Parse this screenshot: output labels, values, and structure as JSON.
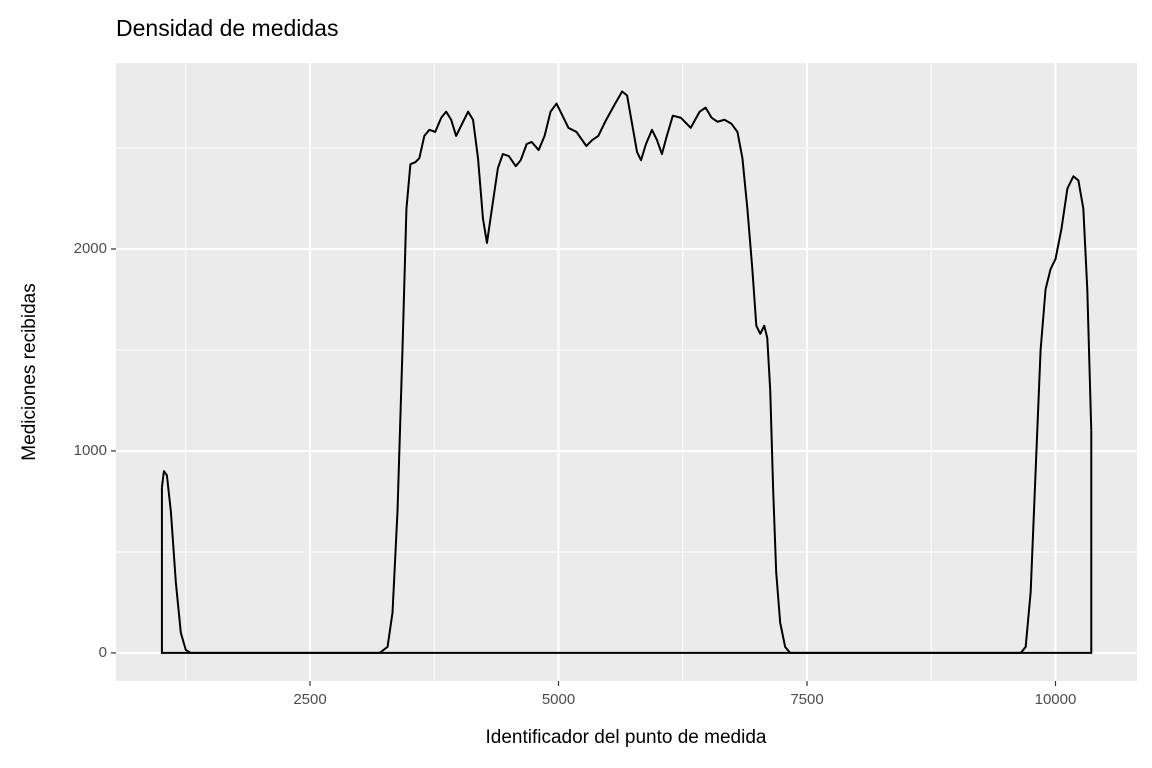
{
  "chart_data": {
    "type": "area_line",
    "title": "Densidad de medidas",
    "xlabel": "Identificador del punto de medida",
    "ylabel": "Mediciones recibidas",
    "x": [
      1010,
      1030,
      1060,
      1100,
      1150,
      1200,
      1250,
      1300,
      2500,
      3200,
      3280,
      3330,
      3380,
      3430,
      3470,
      3510,
      3560,
      3600,
      3650,
      3700,
      3760,
      3820,
      3870,
      3920,
      3970,
      4030,
      4090,
      4140,
      4190,
      4240,
      4280,
      4330,
      4390,
      4440,
      4500,
      4570,
      4620,
      4680,
      4730,
      4800,
      4860,
      4920,
      4980,
      5040,
      5100,
      5180,
      5280,
      5340,
      5400,
      5480,
      5570,
      5640,
      5690,
      5740,
      5790,
      5830,
      5880,
      5940,
      5990,
      6040,
      6090,
      6150,
      6230,
      6330,
      6420,
      6480,
      6540,
      6600,
      6670,
      6740,
      6800,
      6850,
      6900,
      6950,
      6990,
      7030,
      7070,
      7100,
      7130,
      7160,
      7190,
      7230,
      7280,
      7330,
      9650,
      9700,
      9750,
      9800,
      9850,
      9900,
      9950,
      10000,
      10060,
      10120,
      10180,
      10230,
      10280,
      10320,
      10360
    ],
    "values": [
      820,
      900,
      880,
      700,
      350,
      100,
      15,
      0,
      0,
      0,
      30,
      200,
      700,
      1500,
      2200,
      2420,
      2430,
      2450,
      2560,
      2590,
      2580,
      2650,
      2680,
      2640,
      2560,
      2620,
      2680,
      2640,
      2450,
      2150,
      2030,
      2200,
      2400,
      2470,
      2460,
      2410,
      2440,
      2520,
      2530,
      2490,
      2560,
      2680,
      2720,
      2660,
      2600,
      2580,
      2510,
      2540,
      2560,
      2640,
      2720,
      2780,
      2760,
      2620,
      2480,
      2440,
      2520,
      2590,
      2540,
      2470,
      2560,
      2660,
      2650,
      2600,
      2680,
      2700,
      2650,
      2630,
      2640,
      2620,
      2580,
      2450,
      2200,
      1900,
      1620,
      1580,
      1620,
      1560,
      1300,
      800,
      400,
      150,
      30,
      0,
      0,
      30,
      300,
      900,
      1500,
      1800,
      1900,
      1950,
      2100,
      2300,
      2360,
      2340,
      2200,
      1800,
      1100
    ],
    "color": "#000000",
    "xlim": [
      548,
      10820
    ],
    "ylim": [
      -139,
      2921
    ],
    "xticks": [
      2500,
      5000,
      7500,
      10000
    ],
    "yticks": [
      0,
      1000,
      2000
    ],
    "xminor": [
      1250,
      3750,
      6250,
      8750
    ],
    "yminor": [
      500,
      1500,
      2500
    ],
    "grid": true,
    "background": "#ebebeb"
  }
}
